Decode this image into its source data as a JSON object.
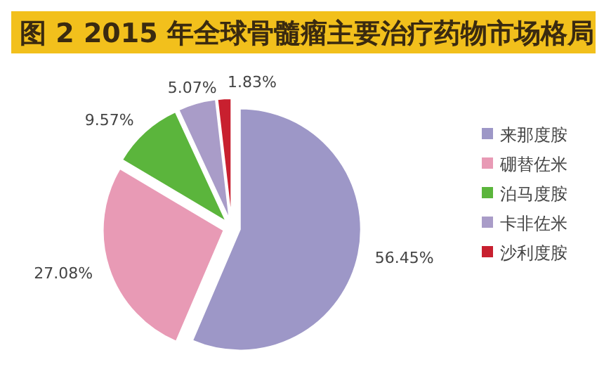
{
  "chart_data": {
    "type": "pie",
    "title": "图 2 2015 年全球骨髓瘤主要治疗药物市场格局",
    "categories": [
      "来那度胺",
      "硼替佐米",
      "泊马度胺",
      "卡非佐米",
      "沙利度胺"
    ],
    "values": [
      56.45,
      27.08,
      9.57,
      5.07,
      1.83
    ],
    "colors": [
      "#9d97c7",
      "#e89ab5",
      "#5bb53c",
      "#a99cc8",
      "#c8202f"
    ],
    "value_labels": [
      "56.45%",
      "27.08%",
      "9.57%",
      "5.07%",
      "1.83%"
    ],
    "legend": "right"
  }
}
